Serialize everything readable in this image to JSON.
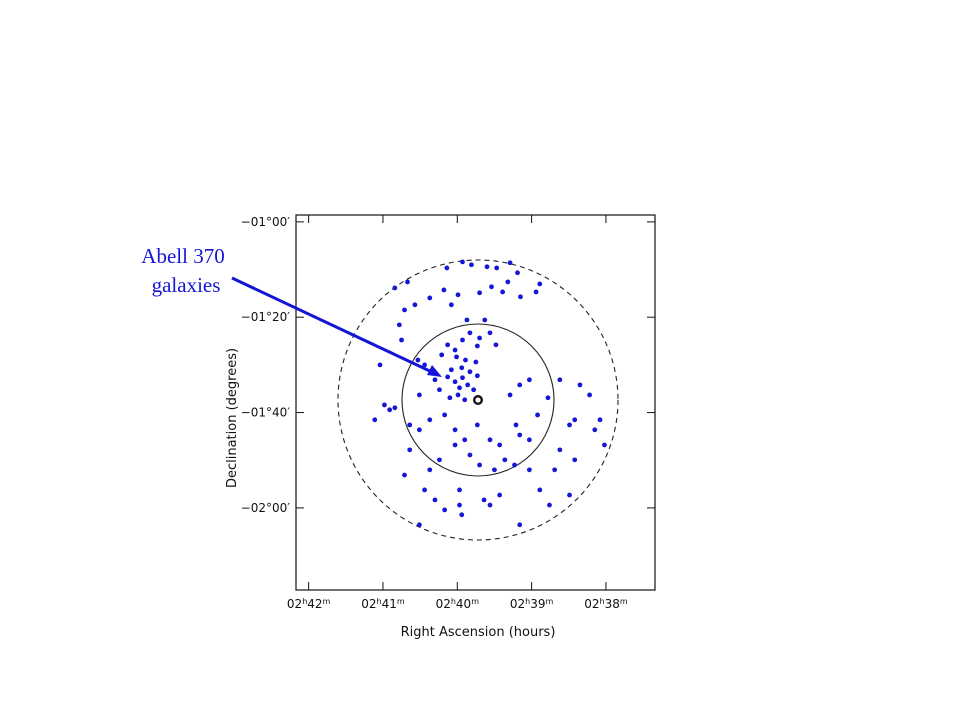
{
  "chart_data": {
    "type": "scatter",
    "xlabel": "Right Ascension (hours)",
    "ylabel": "Declination (degrees)",
    "annotation": [
      "Abell 370",
      "galaxies"
    ],
    "color": "#1616d6",
    "xlim": [
      42.17,
      37.34
    ],
    "ylim": [
      -0.976,
      -2.287
    ],
    "xticks": [
      {
        "value": 42,
        "label": "02h42m"
      },
      {
        "value": 41,
        "label": "02h41m"
      },
      {
        "value": 40,
        "label": "02h40m"
      },
      {
        "value": 39,
        "label": "02h39m"
      },
      {
        "value": 38,
        "label": "02h38m"
      }
    ],
    "yticks": [
      {
        "value": -1.0,
        "label": "−01°00′"
      },
      {
        "value": -1.3333,
        "label": "−01°20′"
      },
      {
        "value": -1.6667,
        "label": "−01°40′"
      },
      {
        "value": -2.0,
        "label": "−02°00′"
      }
    ],
    "x": [
      40.14,
      39.93,
      39.81,
      39.6,
      39.47,
      39.29,
      39.19,
      38.89,
      38.94,
      39.15,
      39.32,
      39.39,
      39.54,
      39.7,
      40.37,
      40.57,
      40.84,
      40.67,
      40.18,
      39.99,
      40.08,
      39.87,
      39.83,
      39.7,
      39.56,
      39.63,
      39.48,
      39.73,
      39.93,
      40.03,
      40.13,
      40.21,
      40.01,
      39.89,
      39.75,
      39.94,
      40.08,
      39.83,
      39.73,
      39.93,
      40.03,
      40.13,
      39.97,
      39.86,
      39.78,
      39.99,
      40.1,
      39.9,
      40.24,
      40.44,
      40.53,
      40.75,
      40.78,
      40.71,
      41.04,
      40.98,
      40.91,
      41.11,
      40.84,
      40.64,
      40.51,
      40.37,
      40.17,
      40.03,
      39.9,
      39.73,
      39.56,
      39.43,
      39.21,
      39.16,
      39.03,
      38.92,
      38.78,
      38.62,
      38.35,
      38.22,
      38.08,
      38.15,
      38.02,
      38.49,
      38.42,
      38.62,
      38.69,
      38.89,
      39.03,
      39.23,
      39.36,
      39.5,
      39.7,
      39.83,
      40.03,
      40.24,
      40.37,
      40.64,
      40.71,
      40.44,
      40.3,
      40.17,
      39.97,
      39.94,
      39.56,
      39.43,
      39.16,
      38.76,
      38.49,
      38.42,
      40.51,
      39.97,
      39.64,
      39.29,
      39.16,
      39.03,
      40.51,
      40.3
    ],
    "values": [
      -1.161,
      -1.14,
      -1.15,
      -1.157,
      -1.161,
      -1.143,
      -1.178,
      -1.217,
      -1.245,
      -1.262,
      -1.21,
      -1.245,
      -1.227,
      -1.248,
      -1.266,
      -1.29,
      -1.231,
      -1.21,
      -1.238,
      -1.255,
      -1.29,
      -1.343,
      -1.388,
      -1.406,
      -1.388,
      -1.343,
      -1.43,
      -1.434,
      -1.413,
      -1.448,
      -1.43,
      -1.465,
      -1.472,
      -1.483,
      -1.49,
      -1.51,
      -1.517,
      -1.524,
      -1.538,
      -1.545,
      -1.559,
      -1.542,
      -1.58,
      -1.57,
      -1.587,
      -1.605,
      -1.615,
      -1.622,
      -1.587,
      -1.5,
      -1.483,
      -1.413,
      -1.36,
      -1.308,
      -1.5,
      -1.64,
      -1.657,
      -1.692,
      -1.65,
      -1.71,
      -1.727,
      -1.692,
      -1.675,
      -1.727,
      -1.762,
      -1.71,
      -1.762,
      -1.78,
      -1.71,
      -1.745,
      -1.762,
      -1.675,
      -1.615,
      -1.552,
      -1.57,
      -1.605,
      -1.692,
      -1.727,
      -1.78,
      -1.71,
      -1.692,
      -1.797,
      -1.867,
      -1.937,
      -1.867,
      -1.85,
      -1.832,
      -1.867,
      -1.85,
      -1.815,
      -1.78,
      -1.832,
      -1.867,
      -1.797,
      -1.885,
      -1.937,
      -1.972,
      -2.007,
      -1.99,
      -2.024,
      -1.99,
      -1.955,
      -2.059,
      -1.99,
      -1.955,
      -1.832,
      -2.059,
      -1.937,
      -1.972,
      -1.605,
      -1.57,
      -1.552,
      -1.605,
      -1.552
    ]
  }
}
